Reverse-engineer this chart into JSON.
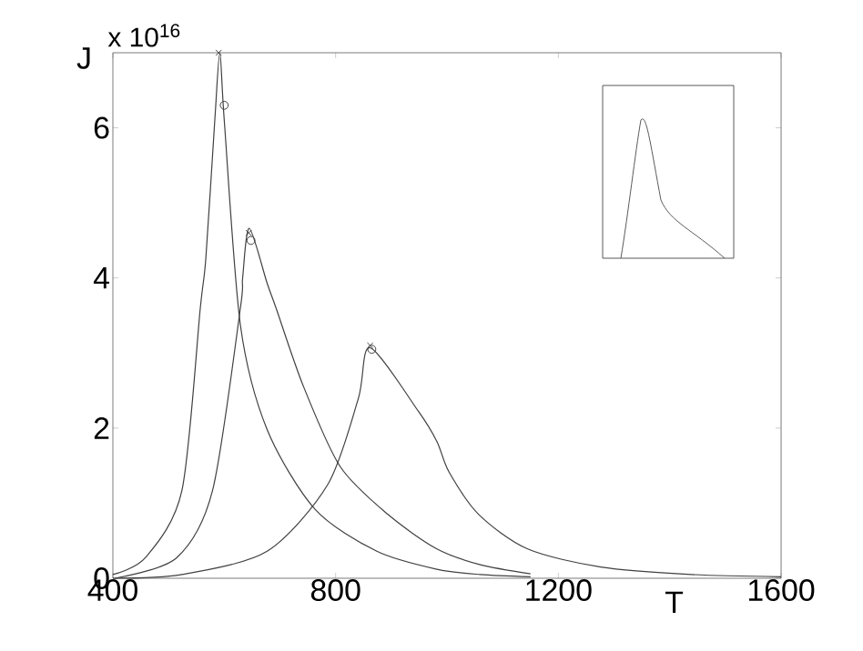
{
  "chart_data": {
    "type": "line",
    "xlabel": "T",
    "ylabel": "J",
    "annotations": [
      "x 10$^{16}$"
    ],
    "xlim": [
      400,
      1600
    ],
    "ylim": [
      0,
      7
    ],
    "xticks": [
      400,
      800,
      1200,
      1600
    ],
    "yticks": [
      0,
      2,
      4,
      6
    ],
    "grid": false,
    "series": [
      {
        "color": "#404040",
        "marker": "none",
        "x": [
          400,
          459,
          524,
          557,
          567,
          583,
          592,
          600,
          629,
          677,
          763,
          874,
          982,
          1060,
          1150
        ],
        "values": [
          0.05,
          0.28,
          1.17,
          3.6,
          4.27,
          6.1,
          7.0,
          6.1,
          3.37,
          1.98,
          0.92,
          0.36,
          0.12,
          0.05,
          0.02
        ]
      },
      {
        "color": "#404040",
        "marker": "none",
        "x": [
          403,
          514,
          579,
          629,
          633,
          645,
          677,
          693,
          742,
          808,
          894,
          982,
          1060,
          1150
        ],
        "values": [
          0.0,
          0.27,
          1.17,
          3.6,
          4.0,
          4.66,
          3.93,
          3.6,
          2.56,
          1.49,
          0.85,
          0.39,
          0.18,
          0.06
        ]
      },
      {
        "color": "#404040",
        "marker": "none",
        "x": [
          400,
          524,
          677,
          786,
          841,
          862,
          949,
          982,
          1004,
          1057,
          1145,
          1276,
          1439,
          1600
        ],
        "values": [
          0.0,
          0.05,
          0.36,
          1.25,
          2.4,
          3.07,
          2.22,
          1.82,
          1.41,
          0.85,
          0.39,
          0.15,
          0.05,
          0.02
        ]
      },
      {
        "type": "scatter",
        "color": "#404040",
        "marker": "cross",
        "x": [
          590,
          644,
          862
        ],
        "values": [
          7.0,
          4.6,
          3.1
        ]
      },
      {
        "type": "scatter",
        "color": "#404040",
        "marker": "circle",
        "x": [
          600,
          648,
          865
        ],
        "values": [
          6.3,
          4.5,
          3.05
        ]
      }
    ]
  }
}
